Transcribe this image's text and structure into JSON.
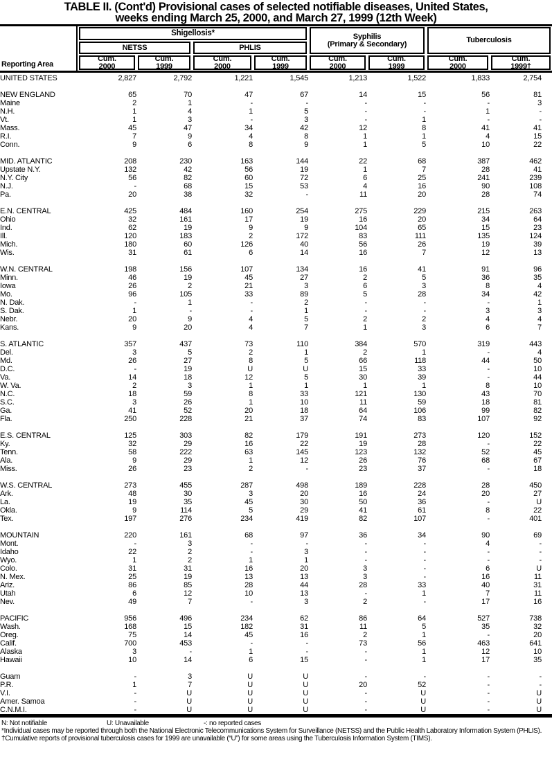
{
  "title": {
    "line1": "TABLE II. (Cont'd) Provisional cases of selected notifiable diseases, United States,",
    "line2": "weeks ending March 25, 2000, and March 27, 1999 (12th Week)"
  },
  "header": {
    "reporting_area": "Reporting Area",
    "shigellosis": "Shigellosis*",
    "netss": "NETSS",
    "phlis": "PHLIS",
    "syphilis_line1": "Syphilis",
    "syphilis_line2": "(Primary & Secondary)",
    "tuberculosis": "Tuberculosis",
    "cols": [
      {
        "l1": "Cum.",
        "l2": "2000"
      },
      {
        "l1": "Cum.",
        "l2": "1999"
      },
      {
        "l1": "Cum.",
        "l2": "2000"
      },
      {
        "l1": "Cum.",
        "l2": "1999"
      },
      {
        "l1": "Cum.",
        "l2": "2000"
      },
      {
        "l1": "Cum.",
        "l2": "1999"
      },
      {
        "l1": "Cum.",
        "l2": "2000"
      },
      {
        "l1": "Cum.",
        "l2": "1999†"
      }
    ]
  },
  "table": {
    "rows": [
      {
        "type": "total",
        "area": "UNITED STATES",
        "values": [
          "2,827",
          "2,792",
          "1,221",
          "1,545",
          "1,213",
          "1,522",
          "1,833",
          "2,754"
        ]
      },
      {
        "type": "spacer"
      },
      {
        "type": "region",
        "area": "NEW ENGLAND",
        "values": [
          "65",
          "70",
          "47",
          "67",
          "14",
          "15",
          "56",
          "81"
        ]
      },
      {
        "type": "state",
        "area": "Maine",
        "values": [
          "2",
          "1",
          "-",
          "-",
          "-",
          "-",
          "-",
          "3"
        ]
      },
      {
        "type": "state",
        "area": "N.H.",
        "values": [
          "1",
          "4",
          "1",
          "5",
          "-",
          "-",
          "1",
          "-"
        ]
      },
      {
        "type": "state",
        "area": "Vt.",
        "values": [
          "1",
          "3",
          "-",
          "3",
          "-",
          "1",
          "-",
          "-"
        ]
      },
      {
        "type": "state",
        "area": "Mass.",
        "values": [
          "45",
          "47",
          "34",
          "42",
          "12",
          "8",
          "41",
          "41"
        ]
      },
      {
        "type": "state",
        "area": "R.I.",
        "values": [
          "7",
          "9",
          "4",
          "8",
          "1",
          "1",
          "4",
          "15"
        ]
      },
      {
        "type": "state",
        "area": "Conn.",
        "values": [
          "9",
          "6",
          "8",
          "9",
          "1",
          "5",
          "10",
          "22"
        ]
      },
      {
        "type": "spacer"
      },
      {
        "type": "region",
        "area": "MID. ATLANTIC",
        "values": [
          "208",
          "230",
          "163",
          "144",
          "22",
          "68",
          "387",
          "462"
        ]
      },
      {
        "type": "state",
        "area": "Upstate N.Y.",
        "values": [
          "132",
          "42",
          "56",
          "19",
          "1",
          "7",
          "28",
          "41"
        ]
      },
      {
        "type": "state",
        "area": "N.Y. City",
        "values": [
          "56",
          "82",
          "60",
          "72",
          "6",
          "25",
          "241",
          "239"
        ]
      },
      {
        "type": "state",
        "area": "N.J.",
        "values": [
          "-",
          "68",
          "15",
          "53",
          "4",
          "16",
          "90",
          "108"
        ]
      },
      {
        "type": "state",
        "area": "Pa.",
        "values": [
          "20",
          "38",
          "32",
          "-",
          "11",
          "20",
          "28",
          "74"
        ]
      },
      {
        "type": "spacer"
      },
      {
        "type": "region",
        "area": "E.N. CENTRAL",
        "values": [
          "425",
          "484",
          "160",
          "254",
          "275",
          "229",
          "215",
          "263"
        ]
      },
      {
        "type": "state",
        "area": "Ohio",
        "values": [
          "32",
          "161",
          "17",
          "19",
          "16",
          "20",
          "34",
          "64"
        ]
      },
      {
        "type": "state",
        "area": "Ind.",
        "values": [
          "62",
          "19",
          "9",
          "9",
          "104",
          "65",
          "15",
          "23"
        ]
      },
      {
        "type": "state",
        "area": "Ill.",
        "values": [
          "120",
          "183",
          "2",
          "172",
          "83",
          "111",
          "135",
          "124"
        ]
      },
      {
        "type": "state",
        "area": "Mich.",
        "values": [
          "180",
          "60",
          "126",
          "40",
          "56",
          "26",
          "19",
          "39"
        ]
      },
      {
        "type": "state",
        "area": "Wis.",
        "values": [
          "31",
          "61",
          "6",
          "14",
          "16",
          "7",
          "12",
          "13"
        ]
      },
      {
        "type": "spacer"
      },
      {
        "type": "region",
        "area": "W.N. CENTRAL",
        "values": [
          "198",
          "156",
          "107",
          "134",
          "16",
          "41",
          "91",
          "96"
        ]
      },
      {
        "type": "state",
        "area": "Minn.",
        "values": [
          "46",
          "19",
          "45",
          "27",
          "2",
          "5",
          "36",
          "35"
        ]
      },
      {
        "type": "state",
        "area": "Iowa",
        "values": [
          "26",
          "2",
          "21",
          "3",
          "6",
          "3",
          "8",
          "4"
        ]
      },
      {
        "type": "state",
        "area": "Mo.",
        "values": [
          "96",
          "105",
          "33",
          "89",
          "5",
          "28",
          "34",
          "42"
        ]
      },
      {
        "type": "state",
        "area": "N. Dak.",
        "values": [
          "-",
          "1",
          "-",
          "2",
          "-",
          "-",
          "-",
          "1"
        ]
      },
      {
        "type": "state",
        "area": "S. Dak.",
        "values": [
          "1",
          "-",
          "-",
          "1",
          "-",
          "-",
          "3",
          "3"
        ]
      },
      {
        "type": "state",
        "area": "Nebr.",
        "values": [
          "20",
          "9",
          "4",
          "5",
          "2",
          "2",
          "4",
          "4"
        ]
      },
      {
        "type": "state",
        "area": "Kans.",
        "values": [
          "9",
          "20",
          "4",
          "7",
          "1",
          "3",
          "6",
          "7"
        ]
      },
      {
        "type": "spacer"
      },
      {
        "type": "region",
        "area": "S. ATLANTIC",
        "values": [
          "357",
          "437",
          "73",
          "110",
          "384",
          "570",
          "319",
          "443"
        ]
      },
      {
        "type": "state",
        "area": "Del.",
        "values": [
          "3",
          "5",
          "2",
          "1",
          "2",
          "1",
          "-",
          "4"
        ]
      },
      {
        "type": "state",
        "area": "Md.",
        "values": [
          "26",
          "27",
          "8",
          "5",
          "66",
          "118",
          "44",
          "50"
        ]
      },
      {
        "type": "state",
        "area": "D.C.",
        "values": [
          "-",
          "19",
          "U",
          "U",
          "15",
          "33",
          "-",
          "10"
        ]
      },
      {
        "type": "state",
        "area": "Va.",
        "values": [
          "14",
          "18",
          "12",
          "5",
          "30",
          "39",
          "-",
          "44"
        ]
      },
      {
        "type": "state",
        "area": "W. Va.",
        "values": [
          "2",
          "3",
          "1",
          "1",
          "1",
          "1",
          "8",
          "10"
        ]
      },
      {
        "type": "state",
        "area": "N.C.",
        "values": [
          "18",
          "59",
          "8",
          "33",
          "121",
          "130",
          "43",
          "70"
        ]
      },
      {
        "type": "state",
        "area": "S.C.",
        "values": [
          "3",
          "26",
          "1",
          "10",
          "11",
          "59",
          "18",
          "81"
        ]
      },
      {
        "type": "state",
        "area": "Ga.",
        "values": [
          "41",
          "52",
          "20",
          "18",
          "64",
          "106",
          "99",
          "82"
        ]
      },
      {
        "type": "state",
        "area": "Fla.",
        "values": [
          "250",
          "228",
          "21",
          "37",
          "74",
          "83",
          "107",
          "92"
        ]
      },
      {
        "type": "spacer"
      },
      {
        "type": "region",
        "area": "E.S. CENTRAL",
        "values": [
          "125",
          "303",
          "82",
          "179",
          "191",
          "273",
          "120",
          "152"
        ]
      },
      {
        "type": "state",
        "area": "Ky.",
        "values": [
          "32",
          "29",
          "16",
          "22",
          "19",
          "28",
          "-",
          "22"
        ]
      },
      {
        "type": "state",
        "area": "Tenn.",
        "values": [
          "58",
          "222",
          "63",
          "145",
          "123",
          "132",
          "52",
          "45"
        ]
      },
      {
        "type": "state",
        "area": "Ala.",
        "values": [
          "9",
          "29",
          "1",
          "12",
          "26",
          "76",
          "68",
          "67"
        ]
      },
      {
        "type": "state",
        "area": "Miss.",
        "values": [
          "26",
          "23",
          "2",
          "-",
          "23",
          "37",
          "-",
          "18"
        ]
      },
      {
        "type": "spacer"
      },
      {
        "type": "region",
        "area": "W.S. CENTRAL",
        "values": [
          "273",
          "455",
          "287",
          "498",
          "189",
          "228",
          "28",
          "450"
        ]
      },
      {
        "type": "state",
        "area": "Ark.",
        "values": [
          "48",
          "30",
          "3",
          "20",
          "16",
          "24",
          "20",
          "27"
        ]
      },
      {
        "type": "state",
        "area": "La.",
        "values": [
          "19",
          "35",
          "45",
          "30",
          "50",
          "36",
          "-",
          "U"
        ]
      },
      {
        "type": "state",
        "area": "Okla.",
        "values": [
          "9",
          "114",
          "5",
          "29",
          "41",
          "61",
          "8",
          "22"
        ]
      },
      {
        "type": "state",
        "area": "Tex.",
        "values": [
          "197",
          "276",
          "234",
          "419",
          "82",
          "107",
          "-",
          "401"
        ]
      },
      {
        "type": "spacer"
      },
      {
        "type": "region",
        "area": "MOUNTAIN",
        "values": [
          "220",
          "161",
          "68",
          "97",
          "36",
          "34",
          "90",
          "69"
        ]
      },
      {
        "type": "state",
        "area": "Mont.",
        "values": [
          "-",
          "3",
          "-",
          "-",
          "-",
          "-",
          "4",
          "-"
        ]
      },
      {
        "type": "state",
        "area": "Idaho",
        "values": [
          "22",
          "2",
          "-",
          "3",
          "-",
          "-",
          "-",
          "-"
        ]
      },
      {
        "type": "state",
        "area": "Wyo.",
        "values": [
          "1",
          "2",
          "1",
          "1",
          "-",
          "-",
          "-",
          "-"
        ]
      },
      {
        "type": "state",
        "area": "Colo.",
        "values": [
          "31",
          "31",
          "16",
          "20",
          "3",
          "-",
          "6",
          "U"
        ]
      },
      {
        "type": "state",
        "area": "N. Mex.",
        "values": [
          "25",
          "19",
          "13",
          "13",
          "3",
          "-",
          "16",
          "11"
        ]
      },
      {
        "type": "state",
        "area": "Ariz.",
        "values": [
          "86",
          "85",
          "28",
          "44",
          "28",
          "33",
          "40",
          "31"
        ]
      },
      {
        "type": "state",
        "area": "Utah",
        "values": [
          "6",
          "12",
          "10",
          "13",
          "-",
          "1",
          "7",
          "11"
        ]
      },
      {
        "type": "state",
        "area": "Nev.",
        "values": [
          "49",
          "7",
          "-",
          "3",
          "2",
          "-",
          "17",
          "16"
        ]
      },
      {
        "type": "spacer"
      },
      {
        "type": "region",
        "area": "PACIFIC",
        "values": [
          "956",
          "496",
          "234",
          "62",
          "86",
          "64",
          "527",
          "738"
        ]
      },
      {
        "type": "state",
        "area": "Wash.",
        "values": [
          "168",
          "15",
          "182",
          "31",
          "11",
          "5",
          "35",
          "32"
        ]
      },
      {
        "type": "state",
        "area": "Oreg.",
        "values": [
          "75",
          "14",
          "45",
          "16",
          "2",
          "1",
          "-",
          "20"
        ]
      },
      {
        "type": "state",
        "area": "Calif.",
        "values": [
          "700",
          "453",
          "-",
          "-",
          "73",
          "56",
          "463",
          "641"
        ]
      },
      {
        "type": "state",
        "area": "Alaska",
        "values": [
          "3",
          "-",
          "1",
          "-",
          "-",
          "1",
          "12",
          "10"
        ]
      },
      {
        "type": "state",
        "area": "Hawaii",
        "values": [
          "10",
          "14",
          "6",
          "15",
          "-",
          "1",
          "17",
          "35"
        ]
      },
      {
        "type": "spacer"
      },
      {
        "type": "territory",
        "area": "Guam",
        "values": [
          "-",
          "3",
          "U",
          "U",
          "-",
          "-",
          "-",
          "-"
        ]
      },
      {
        "type": "territory",
        "area": "P.R.",
        "values": [
          "1",
          "7",
          "U",
          "U",
          "20",
          "52",
          "-",
          "-"
        ]
      },
      {
        "type": "territory",
        "area": "V.I.",
        "values": [
          "-",
          "U",
          "U",
          "U",
          "-",
          "U",
          "-",
          "U"
        ]
      },
      {
        "type": "territory",
        "area": "Amer. Samoa",
        "values": [
          "-",
          "U",
          "U",
          "U",
          "-",
          "U",
          "-",
          "U"
        ]
      },
      {
        "type": "territory",
        "area": "C.N.M.I.",
        "values": [
          "-",
          "U",
          "U",
          "U",
          "-",
          "U",
          "-",
          "U"
        ]
      }
    ]
  },
  "footnotes": {
    "legend_n": "N: Not notifiable",
    "legend_u": "U: Unavailable",
    "legend_dash": "-: no reported cases",
    "fn_asterisk": "*Individual cases may be reported through both the National Electronic Telecommunications System for Surveillance (NETSS) and the Public Health Laboratory Information System (PHLIS).",
    "fn_dagger": "†Cumulative reports of provisional tuberculosis cases for 1999 are unavailable (“U”) for some areas using the Tuberculosis Information System (TIMS)."
  }
}
